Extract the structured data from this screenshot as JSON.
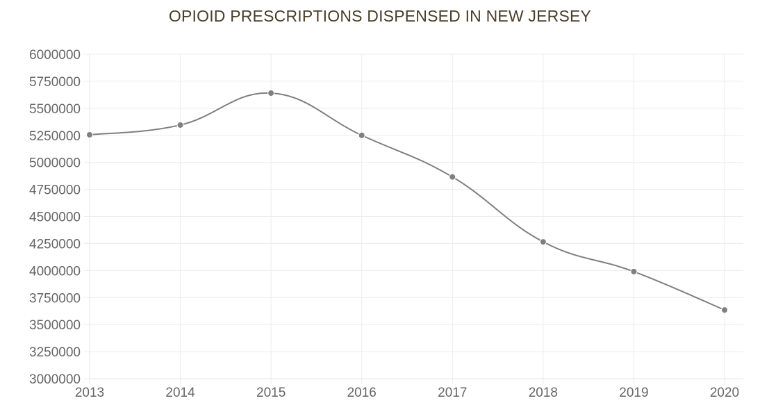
{
  "chart_data": {
    "type": "line",
    "title": "OPIOID PRESCRIPTIONS DISPENSED IN NEW JERSEY",
    "xlabel": "",
    "ylabel": "",
    "categories": [
      "2013",
      "2014",
      "2015",
      "2016",
      "2017",
      "2018",
      "2019",
      "2020"
    ],
    "series": [
      {
        "values": [
          5255000,
          5345000,
          5640000,
          5250000,
          4865000,
          4265000,
          3990000,
          3635000
        ]
      }
    ],
    "ylim": [
      3000000,
      6000000
    ],
    "yticks": [
      "6000000",
      "5750000",
      "5500000",
      "5250000",
      "5000000",
      "4750000",
      "4500000",
      "4250000",
      "4000000",
      "3750000",
      "3500000",
      "3250000",
      "3000000"
    ],
    "grid": true,
    "legend": "none",
    "line_color": "#7f7f7f",
    "title_color": "#4a3d2a"
  }
}
